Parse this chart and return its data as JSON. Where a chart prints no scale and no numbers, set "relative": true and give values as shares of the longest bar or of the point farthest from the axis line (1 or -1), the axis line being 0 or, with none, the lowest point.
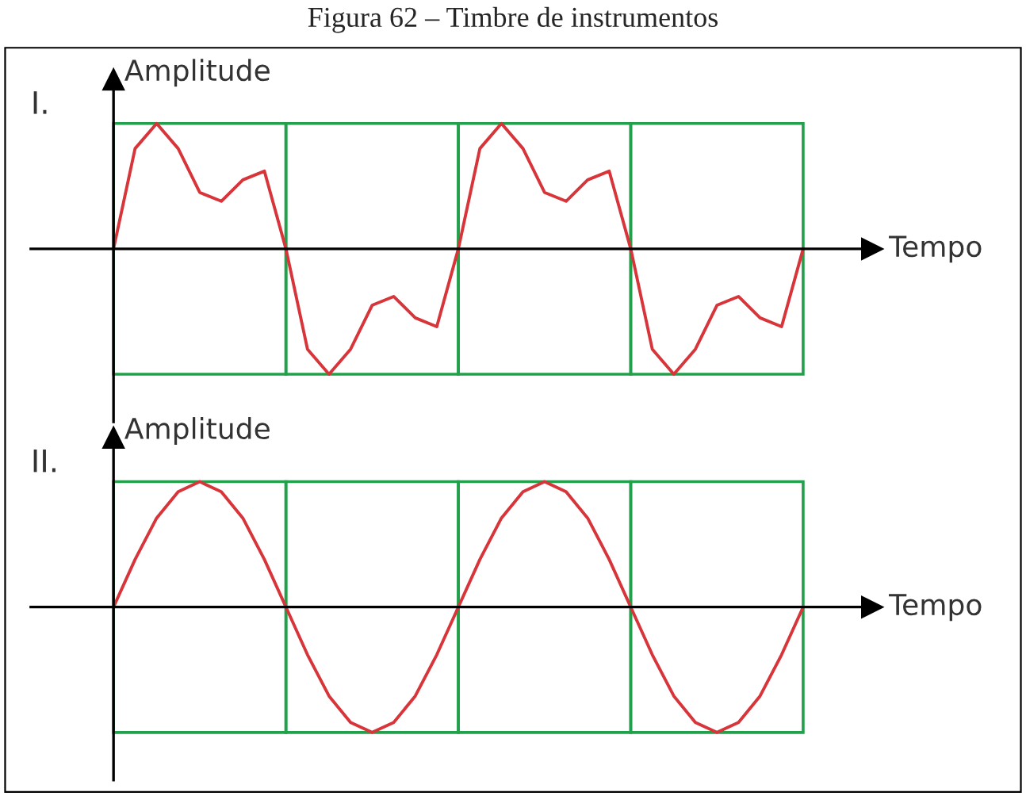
{
  "chart_data": [
    {
      "type": "line",
      "title": "Figura 62 – Timbre de instrumentos",
      "subtitle": "I.",
      "xlabel": "Tempo",
      "ylabel": "Amplitude",
      "relative": true,
      "categories": [
        null,
        null,
        null,
        null,
        null,
        null,
        null,
        null,
        null,
        null,
        null,
        null,
        null,
        null,
        null,
        null,
        null,
        null,
        null,
        null,
        null,
        null,
        null,
        null,
        null,
        null,
        null,
        null,
        null,
        null,
        null,
        null,
        null
      ],
      "series": [
        {
          "color": "#d8353a",
          "values": [
            0,
            0.8,
            1.0,
            0.8,
            0.45,
            0.38,
            0.55,
            0.62,
            0,
            -0.8,
            -1.0,
            -0.8,
            -0.45,
            -0.38,
            -0.55,
            -0.62,
            0,
            0.8,
            1.0,
            0.8,
            0.45,
            0.38,
            0.55,
            0.62,
            0,
            -0.8,
            -1.0,
            -0.8,
            -0.45,
            -0.38,
            -0.55,
            -0.62,
            0
          ]
        }
      ],
      "legend": false
    },
    {
      "type": "line",
      "subtitle": "II.",
      "xlabel": "Tempo",
      "ylabel": "Amplitude",
      "relative": true,
      "categories": [
        null,
        null,
        null,
        null,
        null,
        null,
        null,
        null,
        null,
        null,
        null,
        null,
        null,
        null,
        null,
        null,
        null,
        null,
        null,
        null,
        null,
        null,
        null,
        null,
        null,
        null,
        null,
        null,
        null,
        null,
        null,
        null,
        null
      ],
      "series": [
        {
          "color": "#d8353a",
          "values": [
            0,
            0.38,
            0.71,
            0.92,
            1,
            0.92,
            0.71,
            0.38,
            0,
            -0.38,
            -0.71,
            -0.92,
            -1,
            -0.92,
            -0.71,
            -0.38,
            0,
            0.38,
            0.71,
            0.92,
            1,
            0.92,
            0.71,
            0.38,
            0,
            -0.38,
            -0.71,
            -0.92,
            -1,
            -0.92,
            -0.71,
            -0.38,
            0
          ]
        }
      ],
      "legend": false
    }
  ]
}
